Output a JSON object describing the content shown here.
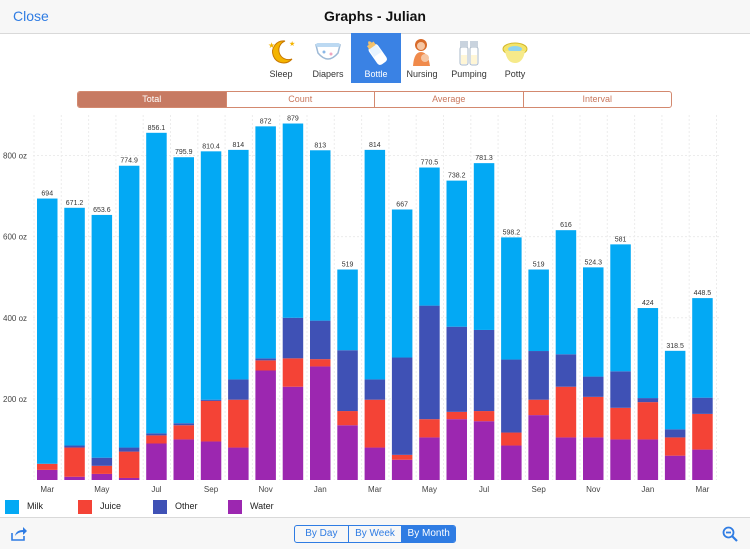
{
  "navbar": {
    "close_label": "Close",
    "title": "Graphs - Julian"
  },
  "categories": [
    {
      "label": "Sleep",
      "icon": "moon-stars-icon"
    },
    {
      "label": "Diapers",
      "icon": "diaper-icon"
    },
    {
      "label": "Bottle",
      "icon": "bottle-icon",
      "active": true
    },
    {
      "label": "Nursing",
      "icon": "nursing-icon"
    },
    {
      "label": "Pumping",
      "icon": "pump-bottles-icon"
    },
    {
      "label": "Potty",
      "icon": "potty-icon"
    }
  ],
  "metric_tabs": [
    {
      "label": "Total",
      "active": true
    },
    {
      "label": "Count"
    },
    {
      "label": "Average"
    },
    {
      "label": "Interval"
    }
  ],
  "range_tabs": [
    {
      "label": "By Day"
    },
    {
      "label": "By Week"
    },
    {
      "label": "By Month",
      "active": true
    }
  ],
  "legend": [
    {
      "label": "Milk",
      "color": "#03a9f4"
    },
    {
      "label": "Juice",
      "color": "#f44336"
    },
    {
      "label": "Other",
      "color": "#3f51b5"
    },
    {
      "label": "Water",
      "color": "#9c27b0"
    }
  ],
  "chart_data": {
    "type": "bar",
    "stacked": true,
    "ylim": [
      0,
      900
    ],
    "y_ticks": [
      200,
      400,
      600,
      800
    ],
    "y_tick_labels": [
      "200 oz",
      "400 oz",
      "600 oz",
      "800 oz"
    ],
    "grid": true,
    "x_tick_labels": [
      "Mar",
      "May",
      "Jul",
      "Sep",
      "Nov",
      "Jan",
      "Mar",
      "May",
      "Jul",
      "Sep",
      "Nov",
      "Jan",
      "Mar"
    ],
    "x_tick_positions": [
      0,
      2,
      4,
      6,
      8,
      10,
      12,
      14,
      16,
      18,
      20,
      22,
      24
    ],
    "totals": [
      694,
      671.2,
      653.6,
      774.9,
      856.1,
      795.9,
      810.4,
      814,
      872,
      879,
      813,
      519,
      814,
      667,
      770.5,
      738.2,
      781.3,
      598.2,
      519,
      616,
      524.3,
      581,
      424,
      318.5,
      448.5
    ],
    "series": [
      {
        "name": "Water",
        "color": "#9c27b0",
        "values": [
          25,
          8,
          15,
          5,
          90,
          100,
          95,
          80,
          270,
          230,
          280,
          135,
          80,
          50,
          105,
          150,
          145,
          85,
          160,
          105,
          105,
          100,
          100,
          60,
          75
        ]
      },
      {
        "name": "Juice",
        "color": "#f44336",
        "values": [
          15,
          72,
          20,
          65,
          20,
          35,
          100,
          118,
          25,
          70,
          18,
          35,
          118,
          12,
          45,
          18,
          25,
          32,
          38,
          125,
          100,
          78,
          92,
          45,
          88
        ]
      },
      {
        "name": "Other",
        "color": "#3f51b5",
        "values": [
          0,
          5,
          20,
          10,
          5,
          5,
          3,
          50,
          5,
          100,
          95,
          150,
          50,
          240,
          280,
          210,
          200,
          180,
          120,
          80,
          50,
          90,
          10,
          20,
          40
        ]
      },
      {
        "name": "Milk",
        "color": "#03a9f4",
        "values": [
          654,
          586.2,
          598.6,
          694.9,
          741.1,
          655.9,
          612.4,
          566,
          572,
          479,
          420,
          199,
          566,
          365,
          340.5,
          360.2,
          411.3,
          301.2,
          201,
          306,
          269.3,
          313,
          222,
          193.5,
          245.5
        ]
      }
    ]
  }
}
